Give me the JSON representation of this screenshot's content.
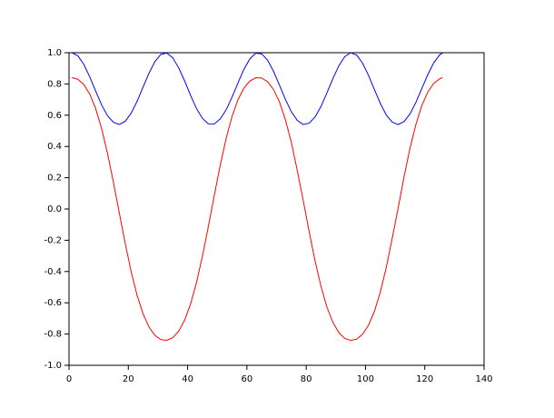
{
  "chart_data": {
    "type": "line",
    "x": [
      1,
      3,
      5,
      7,
      9,
      11,
      13,
      15,
      17,
      19,
      21,
      23,
      25,
      27,
      29,
      31,
      33,
      35,
      37,
      39,
      41,
      43,
      45,
      47,
      49,
      51,
      53,
      55,
      57,
      59,
      61,
      63,
      65,
      67,
      69,
      71,
      73,
      75,
      77,
      79,
      81,
      83,
      85,
      87,
      89,
      91,
      93,
      95,
      97,
      99,
      101,
      103,
      105,
      107,
      109,
      111,
      113,
      115,
      117,
      119,
      121,
      123,
      125,
      126
    ],
    "series": [
      {
        "color": "#0000ff",
        "values": [
          1,
          0.98,
          0.925,
          0.845,
          0.754,
          0.666,
          0.596,
          0.555,
          0.541,
          0.562,
          0.614,
          0.691,
          0.781,
          0.87,
          0.944,
          0.99,
          0.998,
          0.967,
          0.903,
          0.819,
          0.727,
          0.643,
          0.58,
          0.545,
          0.544,
          0.576,
          0.635,
          0.716,
          0.807,
          0.894,
          0.961,
          0.997,
          0.993,
          0.952,
          0.88,
          0.792,
          0.701,
          0.622,
          0.567,
          0.541,
          0.549,
          0.589,
          0.656,
          0.743,
          0.834,
          0.916,
          0.975,
          1,
          0.985,
          0.934,
          0.856,
          0.765,
          0.676,
          0.602,
          0.556,
          0.54,
          0.559,
          0.608,
          0.682,
          0.771,
          0.859,
          0.935,
          0.986,
          0.998
        ]
      },
      {
        "color": "#ff0000",
        "values": [
          0.841,
          0.83,
          0.796,
          0.735,
          0.642,
          0.514,
          0.354,
          0.169,
          -0.029,
          -0.225,
          -0.404,
          -0.555,
          -0.672,
          -0.756,
          -0.809,
          -0.836,
          -0.84,
          -0.823,
          -0.782,
          -0.711,
          -0.608,
          -0.471,
          -0.302,
          -0.112,
          0.087,
          0.28,
          0.452,
          0.593,
          0.7,
          0.774,
          0.819,
          0.84,
          0.838,
          0.814,
          0.764,
          0.685,
          0.571,
          0.425,
          0.246,
          0.054,
          -0.145,
          -0.333,
          -0.496,
          -0.628,
          -0.725,
          -0.79,
          -0.828,
          -0.841,
          -0.833,
          -0.802,
          -0.744,
          -0.655,
          -0.532,
          -0.374,
          -0.189,
          0.004,
          0.205,
          0.388,
          0.541,
          0.662,
          0.747,
          0.803,
          0.833,
          0.84
        ]
      }
    ],
    "xlim": [
      0,
      140
    ],
    "xticks": [
      0,
      20,
      40,
      60,
      80,
      100,
      120,
      140
    ],
    "ylim": [
      -1,
      1
    ],
    "yticks": [
      {
        "value": -1,
        "label": "-1.0"
      },
      {
        "value": -0.8,
        "label": "-0.8"
      },
      {
        "value": -0.6,
        "label": "-0.6"
      },
      {
        "value": -0.4,
        "label": "-0.4"
      },
      {
        "value": -0.2,
        "label": "-0.2"
      },
      {
        "value": 0,
        "label": "0.0"
      },
      {
        "value": 0.2,
        "label": "0.2"
      },
      {
        "value": 0.4,
        "label": "0.4"
      },
      {
        "value": 0.6,
        "label": "0.6"
      },
      {
        "value": 0.8,
        "label": "0.8"
      },
      {
        "value": 1,
        "label": "1.0"
      }
    ],
    "grid": false
  }
}
